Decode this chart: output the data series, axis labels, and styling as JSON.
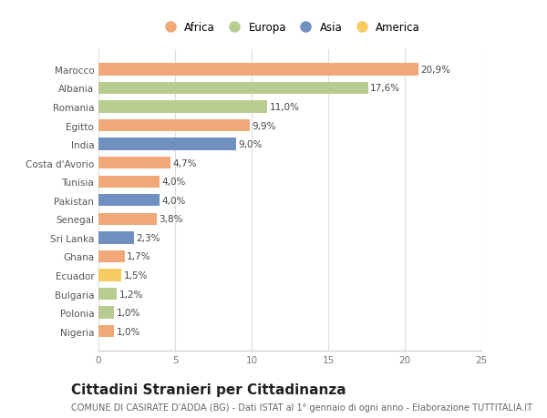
{
  "countries": [
    "Marocco",
    "Albania",
    "Romania",
    "Egitto",
    "India",
    "Costa d'Avorio",
    "Tunisia",
    "Pakistan",
    "Senegal",
    "Sri Lanka",
    "Ghana",
    "Ecuador",
    "Bulgaria",
    "Polonia",
    "Nigeria"
  ],
  "values": [
    20.9,
    17.6,
    11.0,
    9.9,
    9.0,
    4.7,
    4.0,
    4.0,
    3.8,
    2.3,
    1.7,
    1.5,
    1.2,
    1.0,
    1.0
  ],
  "continents": [
    "Africa",
    "Europa",
    "Europa",
    "Africa",
    "Asia",
    "Africa",
    "Africa",
    "Asia",
    "Africa",
    "Asia",
    "Africa",
    "America",
    "Europa",
    "Europa",
    "Africa"
  ],
  "colors": {
    "Africa": "#F0A878",
    "Europa": "#B8CC90",
    "Asia": "#7090C0",
    "America": "#F5CC60"
  },
  "legend_order": [
    "Africa",
    "Europa",
    "Asia",
    "America"
  ],
  "xlim": [
    0,
    25
  ],
  "xticks": [
    0,
    5,
    10,
    15,
    20,
    25
  ],
  "title": "Cittadini Stranieri per Cittadinanza",
  "subtitle": "COMUNE DI CASIRATE D'ADDA (BG) - Dati ISTAT al 1° gennaio di ogni anno - Elaborazione TUTTITALIA.IT",
  "background_color": "#ffffff",
  "bar_height": 0.65,
  "label_fontsize": 7.5,
  "title_fontsize": 11,
  "subtitle_fontsize": 7.0,
  "tick_fontsize": 7.5,
  "legend_fontsize": 8.5
}
